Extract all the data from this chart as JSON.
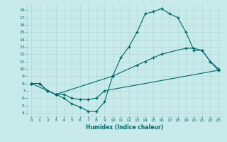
{
  "xlabel": "Humidex (Indice chaleur)",
  "bg_color": "#c8eaea",
  "grid_color": "#b0d8d8",
  "line_color": "#006666",
  "xlim": [
    -0.5,
    23.5
  ],
  "ylim": [
    3.5,
    18.8
  ],
  "xticks": [
    0,
    1,
    2,
    3,
    4,
    5,
    6,
    7,
    8,
    9,
    10,
    11,
    12,
    13,
    14,
    15,
    16,
    17,
    18,
    19,
    20,
    21,
    22,
    23
  ],
  "yticks": [
    4,
    5,
    6,
    7,
    8,
    9,
    10,
    11,
    12,
    13,
    14,
    15,
    16,
    17,
    18
  ],
  "curve1_x": [
    0,
    1,
    2,
    3,
    4,
    5,
    6,
    7,
    8,
    9,
    10,
    11,
    12,
    13,
    14,
    15,
    16,
    17,
    18,
    19,
    20,
    21,
    22,
    23
  ],
  "curve1_y": [
    8.0,
    8.0,
    7.0,
    6.5,
    6.0,
    5.2,
    4.8,
    4.2,
    4.2,
    5.5,
    9.0,
    11.5,
    13.0,
    15.0,
    17.5,
    17.8,
    18.2,
    17.5,
    17.0,
    15.0,
    12.5,
    12.5,
    11.0,
    10.0
  ],
  "curve2_x": [
    0,
    2,
    3,
    10,
    13,
    14,
    15,
    16,
    19,
    20,
    21,
    22,
    23
  ],
  "curve2_y": [
    8.0,
    7.0,
    6.5,
    9.0,
    10.5,
    11.0,
    11.5,
    12.0,
    12.8,
    12.8,
    12.5,
    11.0,
    9.8
  ],
  "curve3_x": [
    0,
    1,
    2,
    3,
    4,
    5,
    6,
    7,
    8,
    9,
    23
  ],
  "curve3_y": [
    8.0,
    8.0,
    7.0,
    6.5,
    6.5,
    6.0,
    5.8,
    5.8,
    6.0,
    7.0,
    9.8
  ]
}
